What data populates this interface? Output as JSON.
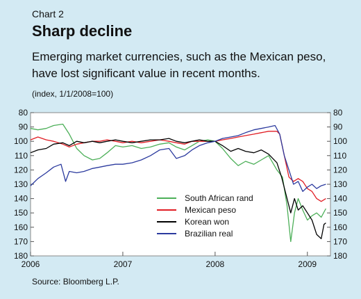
{
  "header": {
    "eyebrow": "Chart 2",
    "title": "Sharp decline",
    "subtitle": "Emerging market currencies, such as the Mexican peso, have lost significant value in recent months.",
    "unit": "(index, 1/1/2008=100)"
  },
  "footer": {
    "source": "Source: Bloomberg L.P."
  },
  "chart_data": {
    "type": "line",
    "ylim": [
      80,
      180
    ],
    "y_axis_inverted": true,
    "yticks": [
      80,
      90,
      100,
      110,
      120,
      130,
      140,
      150,
      160,
      170,
      180
    ],
    "xlim": [
      2006.0,
      2009.25
    ],
    "xticks": [
      2006,
      2007,
      2008,
      2009
    ],
    "xtick_labels": [
      "2006",
      "2007",
      "2008",
      "2009"
    ],
    "grid": false,
    "legend_position": "lower-center",
    "series": [
      {
        "name": "South African rand",
        "color": "#4caf58",
        "points": [
          [
            2006.0,
            91
          ],
          [
            2006.08,
            92
          ],
          [
            2006.17,
            91
          ],
          [
            2006.25,
            89
          ],
          [
            2006.35,
            88
          ],
          [
            2006.42,
            95
          ],
          [
            2006.5,
            105
          ],
          [
            2006.58,
            110
          ],
          [
            2006.67,
            113
          ],
          [
            2006.75,
            112
          ],
          [
            2006.83,
            108
          ],
          [
            2006.92,
            103
          ],
          [
            2007.0,
            104
          ],
          [
            2007.1,
            103
          ],
          [
            2007.2,
            105
          ],
          [
            2007.3,
            104
          ],
          [
            2007.4,
            102
          ],
          [
            2007.5,
            101
          ],
          [
            2007.58,
            104
          ],
          [
            2007.67,
            106
          ],
          [
            2007.75,
            103
          ],
          [
            2007.83,
            100
          ],
          [
            2007.92,
            99
          ],
          [
            2008.0,
            100
          ],
          [
            2008.08,
            105
          ],
          [
            2008.17,
            112
          ],
          [
            2008.25,
            117
          ],
          [
            2008.33,
            114
          ],
          [
            2008.42,
            116
          ],
          [
            2008.5,
            113
          ],
          [
            2008.58,
            110
          ],
          [
            2008.67,
            120
          ],
          [
            2008.73,
            125
          ],
          [
            2008.78,
            145
          ],
          [
            2008.82,
            170
          ],
          [
            2008.86,
            150
          ],
          [
            2008.9,
            140
          ],
          [
            2008.95,
            148
          ],
          [
            2009.0,
            155
          ],
          [
            2009.05,
            152
          ],
          [
            2009.1,
            150
          ],
          [
            2009.15,
            153
          ],
          [
            2009.2,
            147
          ]
        ]
      },
      {
        "name": "Mexican peso",
        "color": "#e11d24",
        "points": [
          [
            2006.0,
            99
          ],
          [
            2006.08,
            97
          ],
          [
            2006.17,
            99
          ],
          [
            2006.25,
            100
          ],
          [
            2006.35,
            102
          ],
          [
            2006.42,
            104
          ],
          [
            2006.5,
            102
          ],
          [
            2006.58,
            101
          ],
          [
            2006.67,
            100
          ],
          [
            2006.75,
            100
          ],
          [
            2006.83,
            99
          ],
          [
            2006.92,
            100
          ],
          [
            2007.0,
            101
          ],
          [
            2007.1,
            100
          ],
          [
            2007.2,
            101
          ],
          [
            2007.3,
            100
          ],
          [
            2007.4,
            99
          ],
          [
            2007.5,
            100
          ],
          [
            2007.58,
            101
          ],
          [
            2007.67,
            102
          ],
          [
            2007.75,
            100
          ],
          [
            2007.83,
            100
          ],
          [
            2007.92,
            100
          ],
          [
            2008.0,
            100
          ],
          [
            2008.08,
            99
          ],
          [
            2008.17,
            98
          ],
          [
            2008.25,
            97
          ],
          [
            2008.33,
            96
          ],
          [
            2008.42,
            95
          ],
          [
            2008.5,
            94
          ],
          [
            2008.58,
            93
          ],
          [
            2008.67,
            93
          ],
          [
            2008.7,
            95
          ],
          [
            2008.75,
            110
          ],
          [
            2008.8,
            125
          ],
          [
            2008.85,
            128
          ],
          [
            2008.9,
            126
          ],
          [
            2008.95,
            128
          ],
          [
            2009.0,
            133
          ],
          [
            2009.05,
            135
          ],
          [
            2009.1,
            140
          ],
          [
            2009.15,
            142
          ],
          [
            2009.2,
            140
          ]
        ]
      },
      {
        "name": "Korean won",
        "color": "#000000",
        "points": [
          [
            2006.0,
            108
          ],
          [
            2006.08,
            106
          ],
          [
            2006.17,
            105
          ],
          [
            2006.25,
            102
          ],
          [
            2006.35,
            101
          ],
          [
            2006.42,
            103
          ],
          [
            2006.5,
            100
          ],
          [
            2006.58,
            101
          ],
          [
            2006.67,
            100
          ],
          [
            2006.75,
            101
          ],
          [
            2006.83,
            100
          ],
          [
            2006.92,
            99
          ],
          [
            2007.0,
            100
          ],
          [
            2007.1,
            101
          ],
          [
            2007.2,
            100
          ],
          [
            2007.3,
            99
          ],
          [
            2007.4,
            99
          ],
          [
            2007.5,
            98
          ],
          [
            2007.58,
            100
          ],
          [
            2007.67,
            101
          ],
          [
            2007.75,
            100
          ],
          [
            2007.83,
            99
          ],
          [
            2007.92,
            100
          ],
          [
            2008.0,
            100
          ],
          [
            2008.08,
            103
          ],
          [
            2008.17,
            107
          ],
          [
            2008.25,
            105
          ],
          [
            2008.33,
            107
          ],
          [
            2008.42,
            108
          ],
          [
            2008.5,
            106
          ],
          [
            2008.58,
            109
          ],
          [
            2008.67,
            115
          ],
          [
            2008.72,
            125
          ],
          [
            2008.78,
            140
          ],
          [
            2008.82,
            150
          ],
          [
            2008.86,
            140
          ],
          [
            2008.9,
            148
          ],
          [
            2008.95,
            145
          ],
          [
            2009.0,
            150
          ],
          [
            2009.05,
            155
          ],
          [
            2009.1,
            165
          ],
          [
            2009.15,
            168
          ],
          [
            2009.18,
            158
          ],
          [
            2009.2,
            157
          ]
        ]
      },
      {
        "name": "Brazilian real",
        "color": "#2b3a9e",
        "points": [
          [
            2006.0,
            131
          ],
          [
            2006.08,
            126
          ],
          [
            2006.17,
            122
          ],
          [
            2006.25,
            118
          ],
          [
            2006.33,
            116
          ],
          [
            2006.38,
            128
          ],
          [
            2006.42,
            121
          ],
          [
            2006.5,
            122
          ],
          [
            2006.58,
            121
          ],
          [
            2006.67,
            119
          ],
          [
            2006.75,
            118
          ],
          [
            2006.83,
            117
          ],
          [
            2006.92,
            116
          ],
          [
            2007.0,
            116
          ],
          [
            2007.1,
            115
          ],
          [
            2007.2,
            113
          ],
          [
            2007.3,
            110
          ],
          [
            2007.4,
            106
          ],
          [
            2007.5,
            105
          ],
          [
            2007.58,
            112
          ],
          [
            2007.67,
            110
          ],
          [
            2007.75,
            106
          ],
          [
            2007.83,
            103
          ],
          [
            2007.92,
            101
          ],
          [
            2008.0,
            100
          ],
          [
            2008.08,
            98
          ],
          [
            2008.17,
            97
          ],
          [
            2008.25,
            96
          ],
          [
            2008.33,
            94
          ],
          [
            2008.42,
            92
          ],
          [
            2008.5,
            91
          ],
          [
            2008.58,
            90
          ],
          [
            2008.65,
            89
          ],
          [
            2008.7,
            95
          ],
          [
            2008.75,
            110
          ],
          [
            2008.8,
            120
          ],
          [
            2008.85,
            130
          ],
          [
            2008.9,
            128
          ],
          [
            2008.95,
            135
          ],
          [
            2009.0,
            132
          ],
          [
            2009.05,
            130
          ],
          [
            2009.1,
            133
          ],
          [
            2009.15,
            131
          ],
          [
            2009.2,
            130
          ]
        ]
      }
    ]
  }
}
